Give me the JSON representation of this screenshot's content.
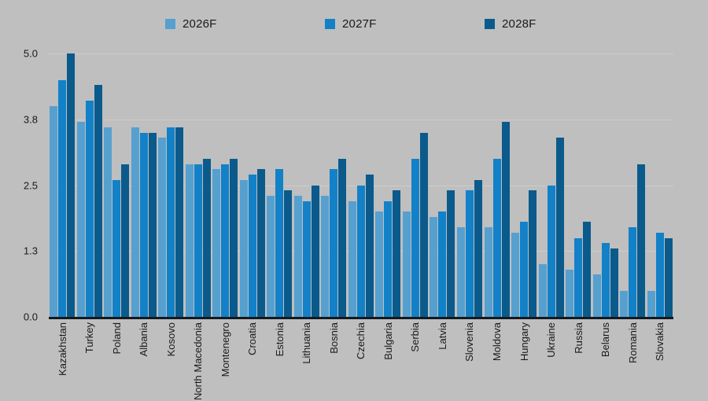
{
  "chart": {
    "background": "#BFBFBF",
    "axis_color": "#14191f",
    "gridline_color": "#CDCDCD",
    "text_color": "#1a1a1a"
  },
  "chart_data": {
    "type": "bar",
    "title": "",
    "xlabel": "",
    "ylabel": "",
    "ylim": [
      0,
      5
    ],
    "yticks": [
      0,
      1.25,
      2.5,
      3.75,
      5
    ],
    "ytick_labels": [
      "0.0",
      "1.3",
      "2.5",
      "3.8",
      "5.0"
    ],
    "grid": "horizontal",
    "legend_position": "top",
    "categories": [
      "Kazakhstan",
      "Turkey",
      "Poland",
      "Albania",
      "Kosovo",
      "North Macedonia",
      "Montenegro",
      "Croatia",
      "Estonia",
      "Lithuania",
      "Bosnia",
      "Czechia",
      "Bulgaria",
      "Serbia",
      "Latvia",
      "Slovenia",
      "Moldova",
      "Hungary",
      "Ukraine",
      "Russia",
      "Belarus",
      "Romania",
      "Slovakia"
    ],
    "series": [
      {
        "name": "2026F",
        "color": "#56A0D0",
        "values": [
          4.0,
          3.7,
          3.6,
          3.6,
          3.4,
          2.9,
          2.8,
          2.6,
          2.3,
          2.3,
          2.3,
          2.2,
          2.0,
          2.0,
          1.9,
          1.7,
          1.7,
          1.6,
          1.0,
          0.9,
          0.8,
          0.5,
          0.5
        ]
      },
      {
        "name": "2027F",
        "color": "#1281C8",
        "values": [
          4.5,
          4.1,
          2.6,
          3.5,
          3.6,
          2.9,
          2.9,
          2.7,
          2.8,
          2.2,
          2.8,
          2.5,
          2.2,
          3.0,
          2.0,
          2.4,
          3.0,
          1.8,
          2.5,
          1.5,
          1.4,
          1.7,
          1.6
        ]
      },
      {
        "name": "2028F",
        "color": "#0B5A8C",
        "values": [
          5.0,
          4.4,
          2.9,
          3.5,
          3.6,
          3.0,
          3.0,
          2.8,
          2.4,
          2.5,
          3.0,
          2.7,
          2.4,
          3.5,
          2.4,
          2.6,
          3.7,
          2.4,
          3.4,
          1.8,
          1.3,
          2.9,
          1.5
        ]
      }
    ]
  }
}
